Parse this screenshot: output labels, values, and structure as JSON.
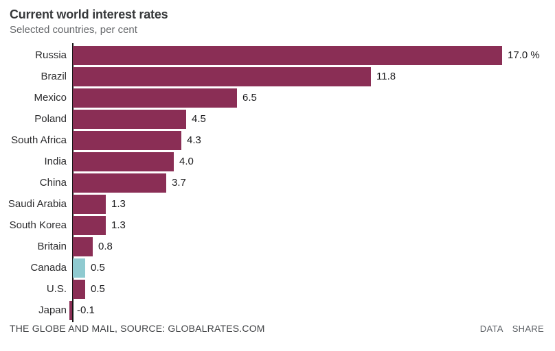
{
  "header": {
    "title": "Current world interest rates",
    "subtitle": "Selected countries, per cent"
  },
  "chart_data": {
    "type": "bar",
    "orientation": "horizontal",
    "title": "Current world interest rates",
    "subtitle": "Selected countries, per cent",
    "categories": [
      "Russia",
      "Brazil",
      "Mexico",
      "Poland",
      "South Africa",
      "India",
      "China",
      "Saudi Arabia",
      "South Korea",
      "Britain",
      "Canada",
      "U.S.",
      "Japan"
    ],
    "values": [
      17.0,
      11.8,
      6.5,
      4.5,
      4.3,
      4.0,
      3.7,
      1.3,
      1.3,
      0.8,
      0.5,
      0.5,
      -0.1
    ],
    "value_labels": [
      "17.0 %",
      "11.8",
      "6.5",
      "4.5",
      "4.3",
      "4.0",
      "3.7",
      "1.3",
      "1.3",
      "0.8",
      "0.5",
      "0.5",
      "-0.1"
    ],
    "xlim": [
      -0.1,
      17.0
    ],
    "xmax": 17.0,
    "grid": false,
    "legend": false,
    "highlight_category": "Canada",
    "colors": {
      "bar": "#8A2E55",
      "highlight": "#8FCAD0",
      "axis": "#141414"
    }
  },
  "footer": {
    "source": "THE GLOBE AND MAIL, SOURCE: GLOBALRATES.COM",
    "data_label": "DATA",
    "share_label": "SHARE"
  }
}
